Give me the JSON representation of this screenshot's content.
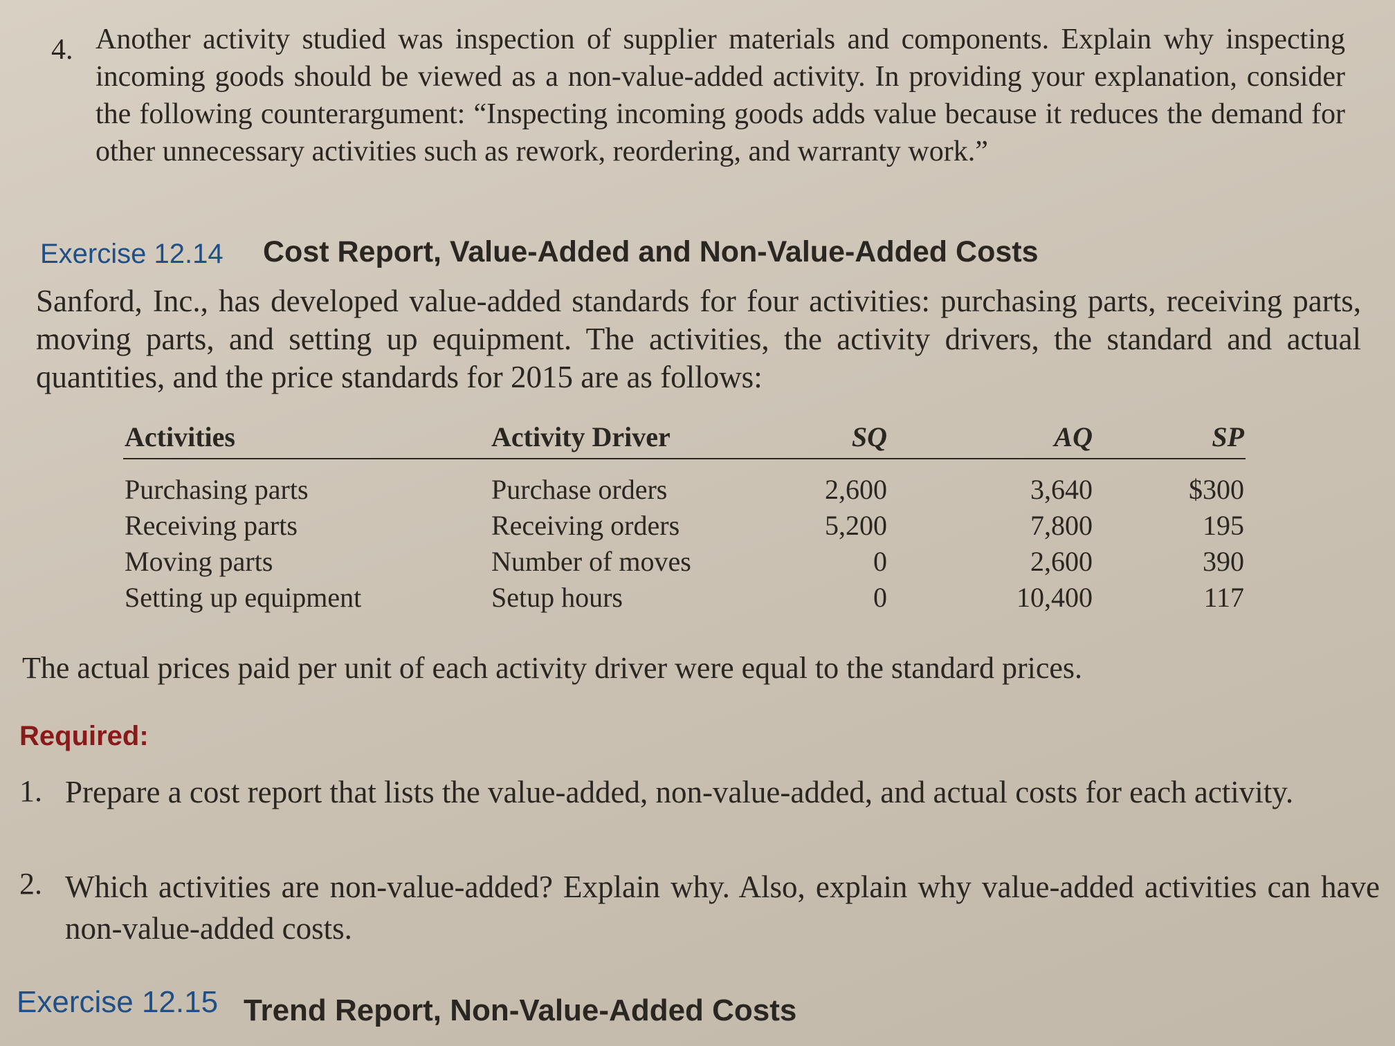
{
  "question4": {
    "number": "4.",
    "text": "Another activity studied was inspection of supplier materials and components. Explain why inspecting incoming goods should be viewed as a non-value-added activity. In providing your explanation, consider the following counterargument: “Inspecting incoming goods adds value because it reduces the demand for other unnecessary activities such as rework, reordering, and warranty work.”"
  },
  "exercise_12_14": {
    "label": "Exercise 12.14",
    "title": "Cost Report, Value-Added and Non-Value-Added Costs",
    "intro": "Sanford, Inc., has developed value-added standards for four activities: purchasing parts, receiving parts, moving parts, and setting up equipment. The activities, the activity drivers, the standard and actual quantities, and the price standards for 2015 are as follows:",
    "table": {
      "headers": [
        "Activities",
        "Activity Driver",
        "SQ",
        "AQ",
        "SP"
      ],
      "rows": [
        [
          "Purchasing parts",
          "Purchase orders",
          "2,600",
          "3,640",
          "$300"
        ],
        [
          "Receiving parts",
          "Receiving orders",
          "5,200",
          "7,800",
          "195"
        ],
        [
          "Moving parts",
          "Number of moves",
          "0",
          "2,600",
          "390"
        ],
        [
          "Setting up equipment",
          "Setup hours",
          "0",
          "10,400",
          "117"
        ]
      ]
    },
    "note": "The actual prices paid per unit of each activity driver were equal to the standard prices.",
    "required": "Required:",
    "items": [
      {
        "number": "1.",
        "text": "Prepare a cost report that lists the value-added, non-value-added, and actual costs for each activity."
      },
      {
        "number": "2.",
        "text": "Which activities are non-value-added? Explain why. Also, explain why value-added activities can have non-value-added costs."
      }
    ]
  },
  "exercise_12_15": {
    "label": "Exercise 12.15",
    "title": "Trend Report, Non-Value-Added Costs"
  }
}
